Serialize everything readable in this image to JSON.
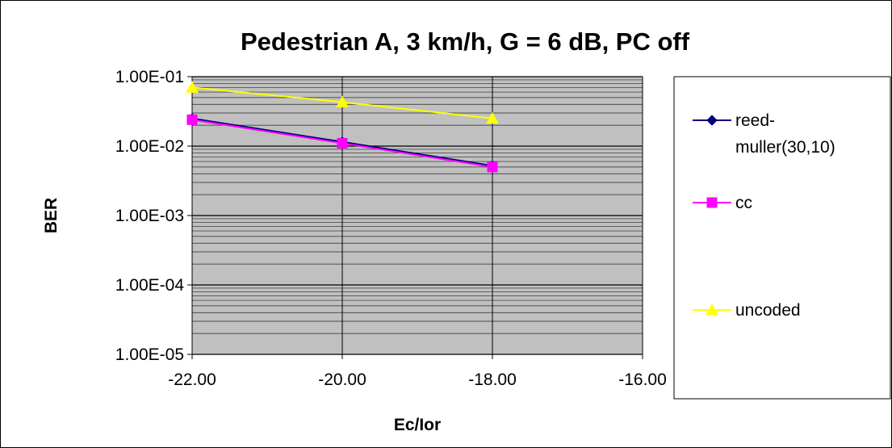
{
  "chart_data": {
    "type": "line",
    "title": "Pedestrian A, 3 km/h, G = 6 dB, PC off",
    "xlabel": "Ec/Ior",
    "ylabel": "BER",
    "x_tick_labels": [
      "-22.00",
      "-20.00",
      "-18.00",
      "-16.00"
    ],
    "y_tick_labels": [
      "1.00E-01",
      "1.00E-02",
      "1.00E-03",
      "1.00E-04",
      "1.00E-05"
    ],
    "xlim": [
      -22,
      -16
    ],
    "ylim": [
      1e-05,
      0.1
    ],
    "y_scale": "log",
    "grid": true,
    "plot_background": "#c0c0c0",
    "legend_position": "right",
    "x": [
      -22,
      -20,
      -18
    ],
    "series": [
      {
        "name": "reed-muller(30,10)",
        "name_lines": [
          "reed-",
          "muller(30,10)"
        ],
        "values": [
          0.025,
          0.0115,
          0.0052
        ],
        "color": "#000080",
        "marker": "diamond"
      },
      {
        "name": "cc",
        "name_lines": [
          "cc"
        ],
        "values": [
          0.024,
          0.011,
          0.005
        ],
        "color": "#ff00ff",
        "marker": "square"
      },
      {
        "name": "uncoded",
        "name_lines": [
          "uncoded"
        ],
        "values": [
          0.07,
          0.043,
          0.025
        ],
        "color": "#ffff00",
        "marker": "triangle"
      }
    ]
  }
}
